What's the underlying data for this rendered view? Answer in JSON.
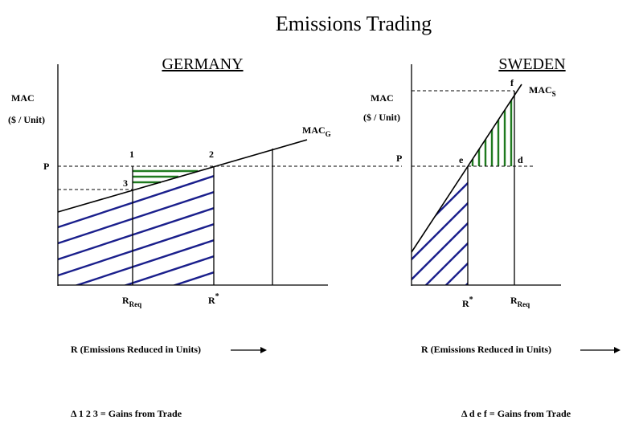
{
  "title": "Emissions Trading",
  "germany": {
    "heading": "GERMANY",
    "mac_label": "MAC",
    "unit_label": "($ / Unit)",
    "curve_label_main": "MAC",
    "curve_label_sub": "G",
    "price_label": "P",
    "point_1": "1",
    "point_2": "2",
    "point_3": "3",
    "r_req_main": "R",
    "r_req_sub": "Req",
    "r_star_main": "R",
    "r_star_sup": "*",
    "x_axis_label": "R (Emissions Reduced in Units)",
    "caption": "Δ 1 2 3  = Gains from Trade"
  },
  "sweden": {
    "heading": "SWEDEN",
    "mac_label": "MAC",
    "unit_label": "($ / Unit)",
    "curve_label_main": "MAC",
    "curve_label_sub": "S",
    "price_label": "P",
    "point_e": "e",
    "point_d": "d",
    "point_f": "f",
    "r_star_main": "R",
    "r_star_sup": "*",
    "r_req_main": "R",
    "r_req_sub": "Req",
    "x_axis_label": "R (Emissions Reduced in Units)",
    "caption": "Δ d e f  = Gains from Trade"
  },
  "colors": {
    "blue_hatch": "#1a1f8c",
    "green_hatch": "#1f7a1f"
  }
}
